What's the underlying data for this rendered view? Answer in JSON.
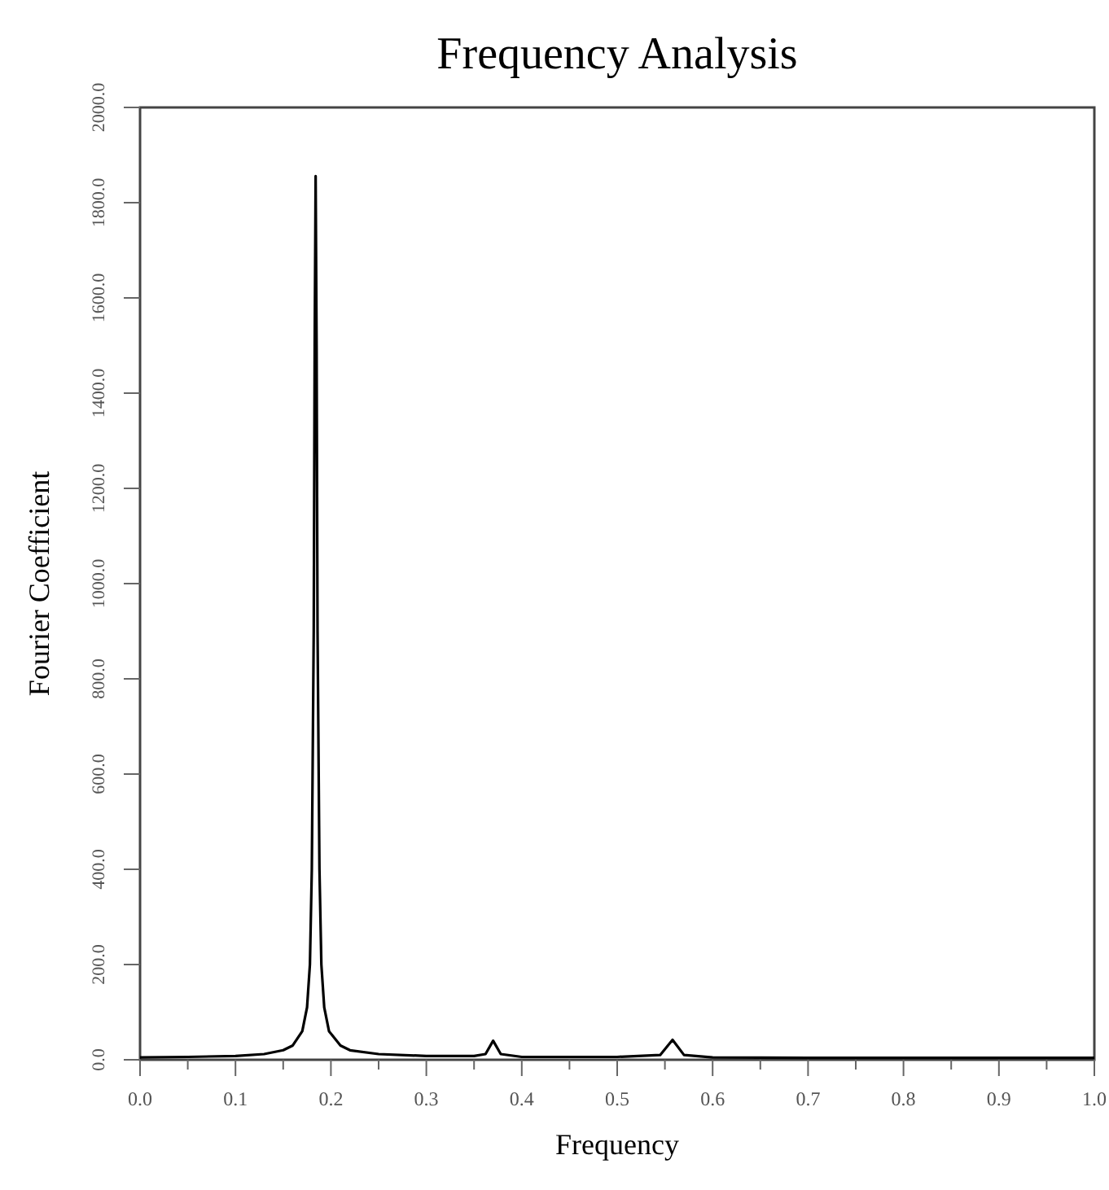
{
  "chart_data": {
    "type": "line",
    "title": "Frequency Analysis",
    "xlabel": "Frequency",
    "ylabel": "Fourier Coefficient",
    "x": [
      0,
      0.05,
      0.1,
      0.13,
      0.15,
      0.16,
      0.17,
      0.175,
      0.178,
      0.18,
      0.182,
      0.183,
      0.184,
      0.185,
      0.186,
      0.188,
      0.19,
      0.193,
      0.198,
      0.21,
      0.22,
      0.25,
      0.3,
      0.35,
      0.362,
      0.37,
      0.378,
      0.4,
      0.5,
      0.545,
      0.558,
      0.57,
      0.6,
      0.7,
      0.8,
      0.9,
      1.0
    ],
    "series": [
      {
        "color": "#000000",
        "values": [
          5,
          6,
          8,
          12,
          20,
          30,
          60,
          110,
          200,
          400,
          900,
          1500,
          1856,
          1500,
          900,
          400,
          200,
          110,
          60,
          30,
          20,
          12,
          8,
          8,
          12,
          40,
          12,
          6,
          6,
          10,
          42,
          10,
          5,
          4,
          4,
          4,
          4
        ]
      }
    ],
    "xlim": [
      0,
      1
    ],
    "ylim": [
      0,
      2000
    ],
    "xticks": [
      {
        "value": 0,
        "label": "0.0"
      },
      {
        "value": 0.05,
        "label": null
      },
      {
        "value": 0.1,
        "label": "0.1"
      },
      {
        "value": 0.15,
        "label": null
      },
      {
        "value": 0.2,
        "label": "0.2"
      },
      {
        "value": 0.25,
        "label": null
      },
      {
        "value": 0.3,
        "label": "0.3"
      },
      {
        "value": 0.35,
        "label": null
      },
      {
        "value": 0.4,
        "label": "0.4"
      },
      {
        "value": 0.45,
        "label": null
      },
      {
        "value": 0.5,
        "label": "0.5"
      },
      {
        "value": 0.55,
        "label": null
      },
      {
        "value": 0.6,
        "label": "0.6"
      },
      {
        "value": 0.65,
        "label": null
      },
      {
        "value": 0.7,
        "label": "0.7"
      },
      {
        "value": 0.75,
        "label": null
      },
      {
        "value": 0.8,
        "label": "0.8"
      },
      {
        "value": 0.85,
        "label": null
      },
      {
        "value": 0.9,
        "label": "0.9"
      },
      {
        "value": 0.95,
        "label": null
      },
      {
        "value": 1,
        "label": "1.0"
      }
    ],
    "yticks": [
      {
        "value": 0,
        "label": "0.0"
      },
      {
        "value": 200,
        "label": "200.0"
      },
      {
        "value": 400,
        "label": "400.0"
      },
      {
        "value": 600,
        "label": "600.0"
      },
      {
        "value": 800,
        "label": "800.0"
      },
      {
        "value": 1000,
        "label": "1000.0"
      },
      {
        "value": 1200,
        "label": "1200.0"
      },
      {
        "value": 1400,
        "label": "1400.0"
      },
      {
        "value": 1600,
        "label": "1600.0"
      },
      {
        "value": 1800,
        "label": "1800.0"
      },
      {
        "value": 2000,
        "label": "2000.0"
      }
    ],
    "grid": false,
    "marker": "none",
    "line_style": "solid"
  }
}
